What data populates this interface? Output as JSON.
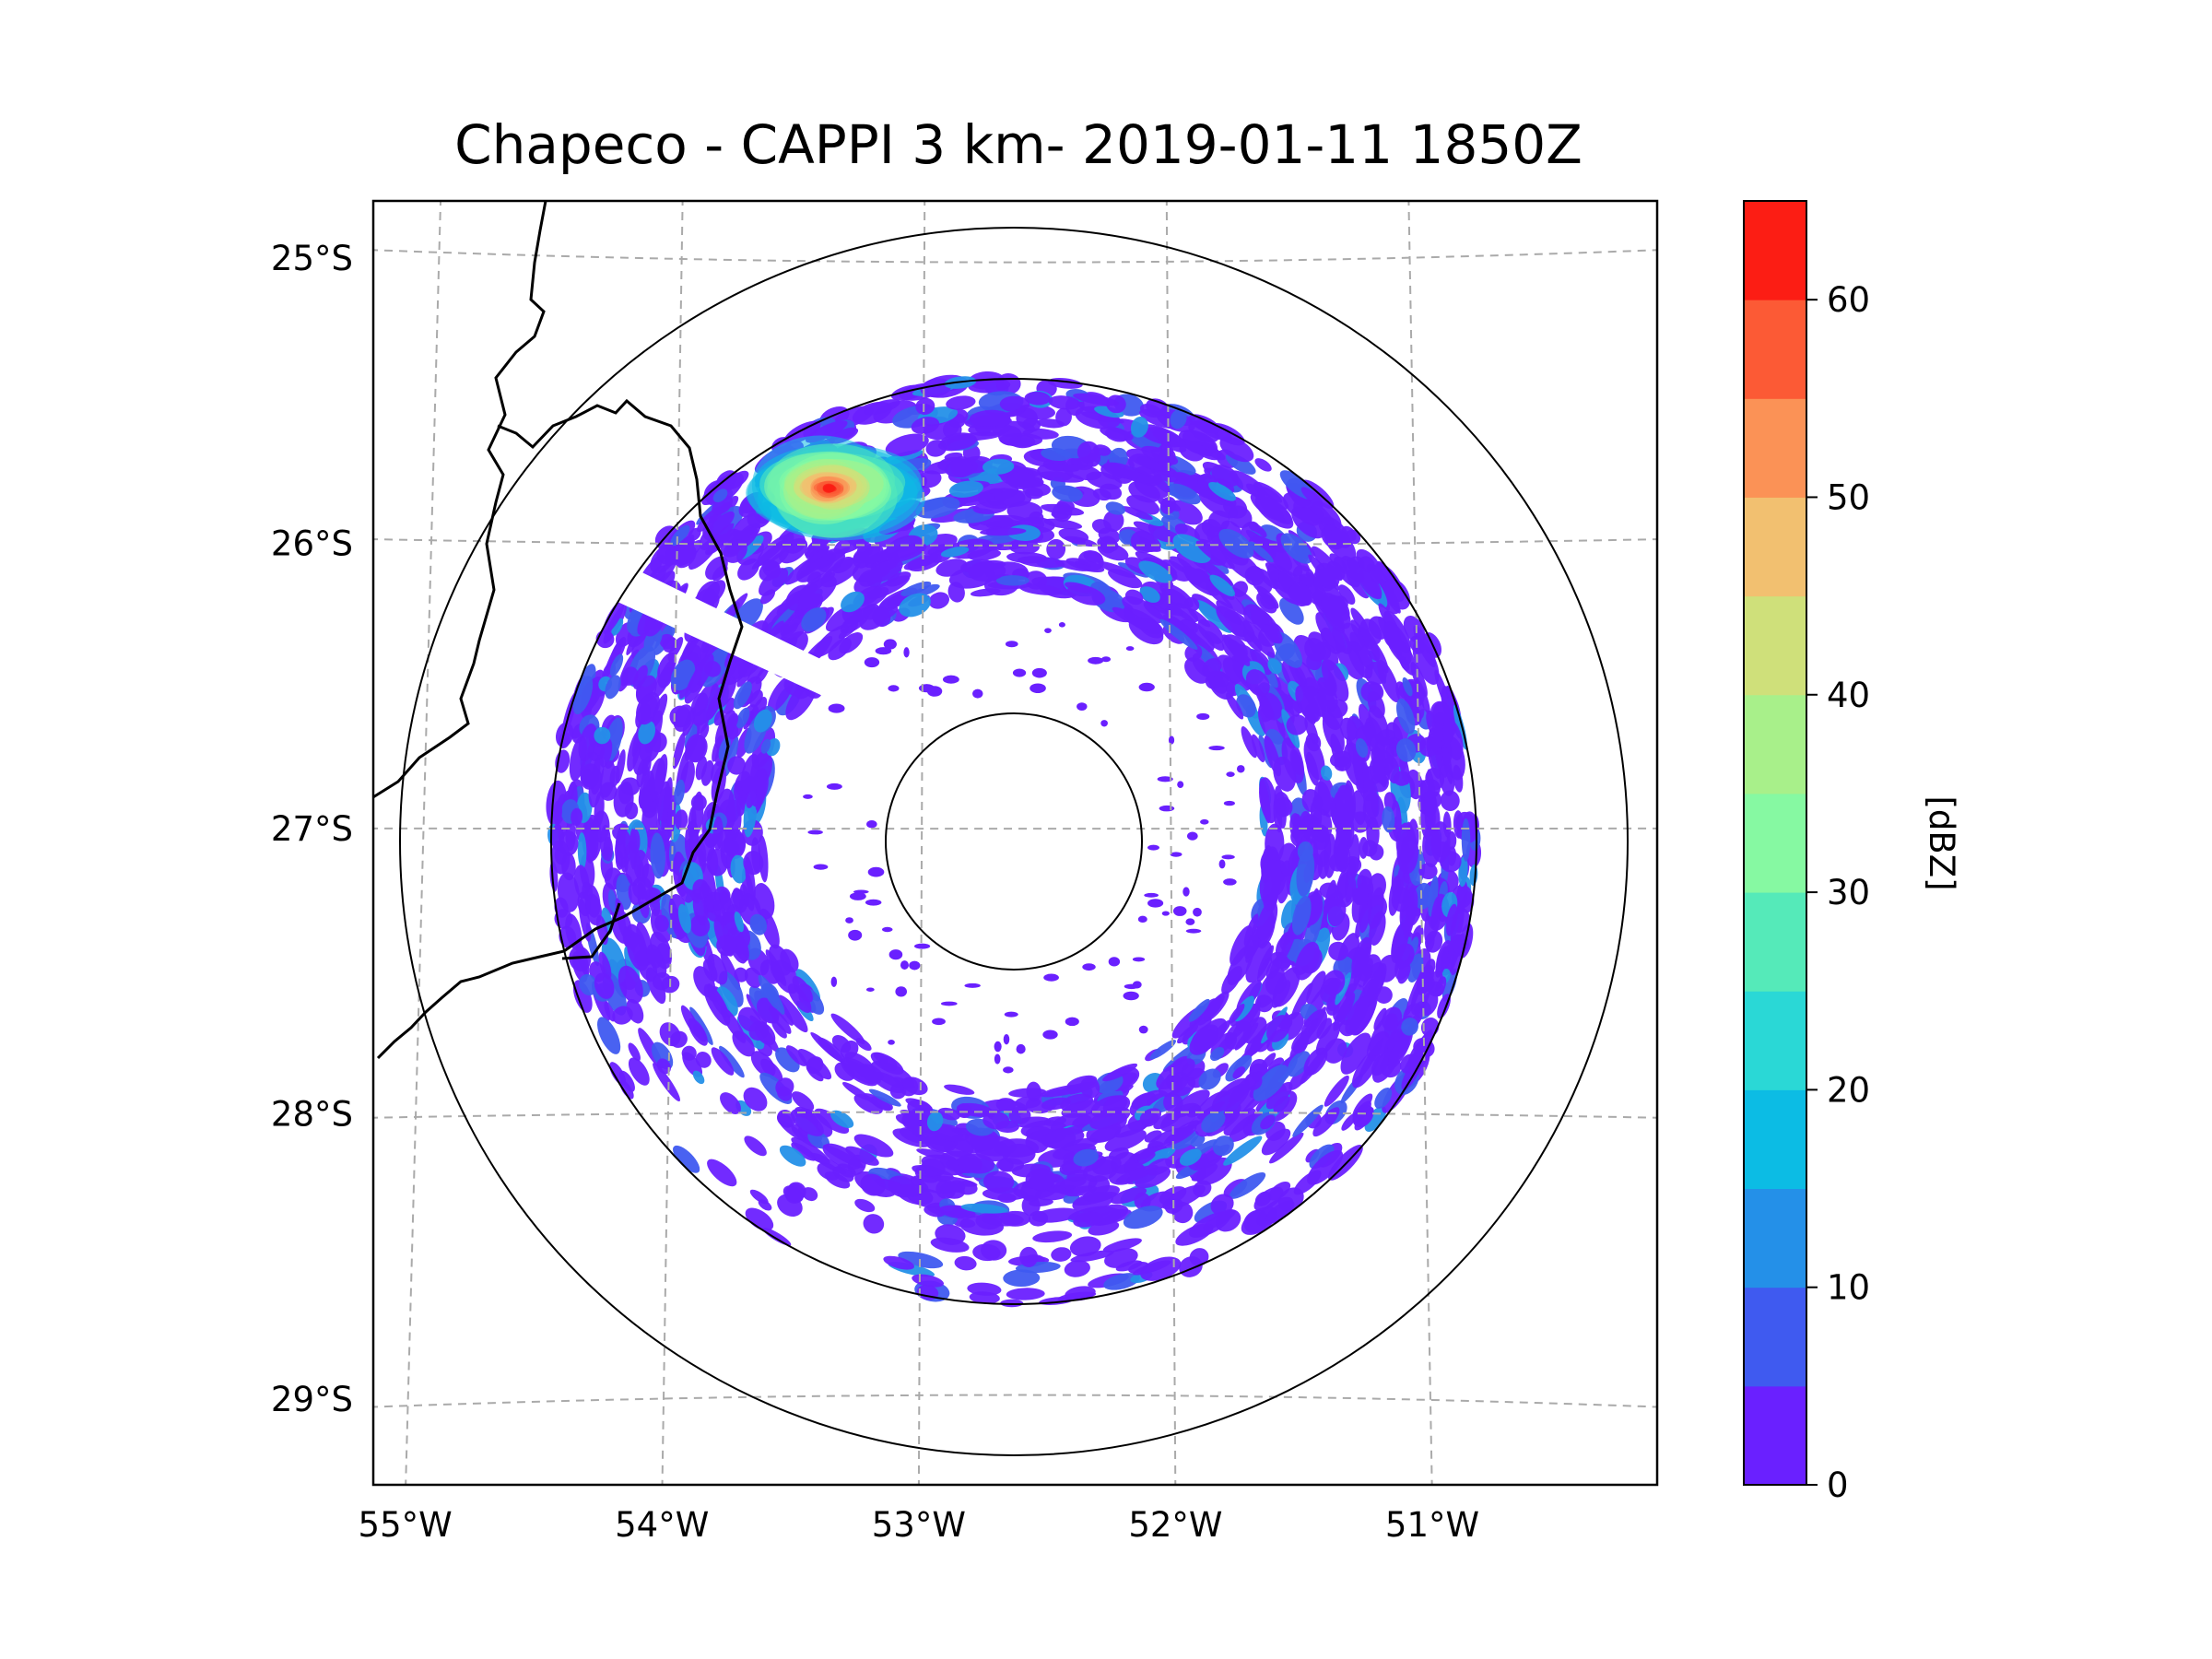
{
  "chart_data": {
    "type": "heatmap",
    "title": "Chapeco - CAPPI 3 km- 2019-01-11 1850Z",
    "map": {
      "lon_ticks": [
        -55,
        -54,
        -53,
        -52,
        -51
      ],
      "lat_ticks": [
        -25,
        -26,
        -27,
        -28,
        -29
      ],
      "lon_labels": [
        "55°W",
        "54°W",
        "53°W",
        "52°W",
        "51°W"
      ],
      "lat_labels": [
        "25°S",
        "26°S",
        "27°S",
        "28°S",
        "29°S"
      ],
      "lon_range": [
        -55.2,
        -50.05
      ],
      "lat_range": [
        -29.3,
        -24.8
      ],
      "gridlines": true,
      "radar_center": [
        -52.6,
        -27.03
      ],
      "range_rings_km": [
        50,
        200,
        250
      ]
    },
    "colorbar": {
      "label": "[dBZ]",
      "min": 0,
      "max": 65,
      "step": 5,
      "tick_values": [
        0,
        10,
        20,
        30,
        40,
        50,
        60
      ],
      "tick_labels": [
        "0",
        "10",
        "20",
        "30",
        "40",
        "50",
        "60"
      ],
      "colors": [
        "#6a20ff",
        "#3f5af0",
        "#2490e8",
        "#0cbce4",
        "#2ad8d6",
        "#55eab9",
        "#86f9a2",
        "#a8f08a",
        "#cfe07a",
        "#f2c070",
        "#fb9256",
        "#fc5a35",
        "#fc1d14"
      ]
    }
  }
}
